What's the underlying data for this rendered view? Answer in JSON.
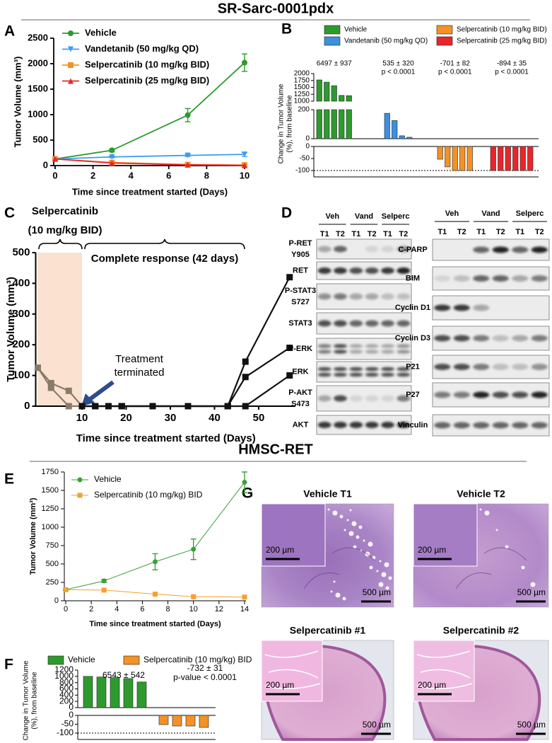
{
  "headings": {
    "top": "SR-Sarc-0001pdx",
    "bottom": "HMSC-RET"
  },
  "panel_labels": [
    "A",
    "B",
    "C",
    "D",
    "E",
    "F",
    "G"
  ],
  "chart_data": [
    {
      "type": "line",
      "x_label": "Time since treatment started (Days)",
      "y_label": "Tumor Volume (mm³)",
      "x": [
        0,
        3,
        7,
        10
      ],
      "xlim": [
        0,
        10
      ],
      "xticks": [
        0,
        2,
        4,
        6,
        8,
        10
      ],
      "ylim": [
        0,
        2500
      ],
      "yticks": [
        0,
        500,
        1000,
        1500,
        2000,
        2500
      ],
      "legend": "upper left",
      "series": [
        {
          "name": "Vehicle",
          "color": "#2e9a2e",
          "marker": "circle",
          "values": [
            130,
            300,
            990,
            2020
          ],
          "errors": [
            10,
            30,
            130,
            170
          ]
        },
        {
          "name": "Vandetanib (50 mg/kg QD)",
          "color": "#3d9cf0",
          "marker": "triangle-down",
          "values": [
            130,
            170,
            200,
            220
          ],
          "errors": [
            10,
            15,
            20,
            40
          ]
        },
        {
          "name": "Selpercatinib (10 mg/kg BID)",
          "color": "#f39226",
          "marker": "square",
          "values": [
            130,
            60,
            20,
            10
          ]
        },
        {
          "name": "Selpercatinib (25 mg/kg BID)",
          "color": "#e8262a",
          "marker": "triangle-up",
          "values": [
            130,
            50,
            15,
            5
          ]
        }
      ]
    },
    {
      "type": "waterfall",
      "y_label": [
        "Change in Tumor Volume",
        "(%), from baseline"
      ],
      "y_segments": [
        {
          "ylim": [
            1000,
            2000
          ],
          "yticks": [
            1000,
            1250,
            1500,
            1750,
            2000
          ]
        },
        {
          "ylim": [
            0,
            200
          ],
          "yticks": [
            0,
            200
          ]
        },
        {
          "ylim": [
            -100,
            0
          ],
          "yticks": [
            -100,
            -50,
            0
          ]
        }
      ],
      "reference_line": -100,
      "legend": "top",
      "series": [
        {
          "name": "Vehicle",
          "color": "#2e9a2e",
          "values": [
            1770,
            1690,
            1560,
            1210,
            1200
          ],
          "annotation": [
            "6497 ± 937"
          ]
        },
        {
          "name": "Vandetanib (50 mg/kg QD)",
          "color": "#3d8fe0",
          "values": [
            175,
            125,
            20,
            10
          ],
          "annotation": [
            "535 ± 320",
            "p < 0.0001"
          ]
        },
        {
          "name": "Selpercatinib (10 mg/kg BID)",
          "color": "#f39226",
          "values": [
            -53,
            -85,
            -100,
            -100,
            -100
          ],
          "annotation": [
            "-701 ± 82",
            "p < 0.0001"
          ]
        },
        {
          "name": "Selpercatinib (25 mg/kg BID)",
          "color": "#e8262a",
          "values": [
            -100,
            -100,
            -100,
            -100,
            -100,
            -100
          ],
          "annotation": [
            "-894 ± 35",
            "p < 0.0001"
          ]
        }
      ]
    },
    {
      "type": "line",
      "x_label": "Time since treatment started (Days)",
      "y_label": "Tumor Volume (mm³)",
      "xlim": [
        0,
        58
      ],
      "xticks": [
        10,
        20,
        30,
        40,
        50
      ],
      "ylim": [
        0,
        500
      ],
      "yticks": [
        0,
        100,
        200,
        300,
        400,
        500
      ],
      "shaded_x": [
        0,
        10
      ],
      "annotations": {
        "treatment": [
          "Selpercatinib",
          "(10 mg/kg BID)"
        ],
        "response": "Complete response (42 days)",
        "terminated": [
          "Treatment",
          "terminated"
        ]
      },
      "series": [
        {
          "color": "#8a7a6a",
          "marker": "square",
          "x": [
            0,
            3,
            7,
            10
          ],
          "values": [
            125,
            75,
            50,
            0
          ]
        },
        {
          "color": "#8a7a6a",
          "marker": "square",
          "x": [
            0,
            3,
            7,
            10
          ],
          "values": [
            125,
            60,
            0,
            0
          ]
        },
        {
          "color": "#111111",
          "marker": "square",
          "x": [
            10,
            13,
            16,
            19,
            26,
            34,
            43,
            47,
            57
          ],
          "values": [
            0,
            0,
            0,
            0,
            0,
            0,
            0,
            145,
            420
          ]
        },
        {
          "color": "#111111",
          "marker": "square",
          "x": [
            10,
            13,
            16,
            19,
            26,
            34,
            43,
            47,
            57
          ],
          "values": [
            0,
            0,
            0,
            0,
            0,
            0,
            0,
            95,
            190
          ]
        },
        {
          "color": "#111111",
          "marker": "square",
          "x": [
            10,
            13,
            16,
            19,
            26,
            34,
            43,
            47,
            57
          ],
          "values": [
            0,
            0,
            0,
            0,
            0,
            0,
            0,
            0,
            100
          ]
        }
      ]
    },
    {
      "type": "line",
      "x_label": "Time since treatment started (Days)",
      "y_label": "Tumor Volume (mm³)",
      "x": [
        0,
        3,
        7,
        10,
        14
      ],
      "xlim": [
        0,
        14
      ],
      "xticks": [
        0,
        2,
        4,
        6,
        8,
        10,
        12,
        14
      ],
      "ylim": [
        0,
        1750
      ],
      "yticks": [
        0,
        250,
        500,
        750,
        1000,
        1250,
        1500,
        1750
      ],
      "legend": "upper left",
      "series": [
        {
          "name": "Vehicle",
          "color": "#3aa03a",
          "marker": "circle",
          "values": [
            150,
            270,
            530,
            700,
            1610
          ],
          "errors": [
            10,
            20,
            110,
            140,
            140
          ]
        },
        {
          "name": "Selpercatinib (10 mg/kg) BID",
          "color": "#f5a030",
          "marker": "square",
          "values": [
            150,
            145,
            90,
            55,
            50
          ]
        }
      ]
    },
    {
      "type": "waterfall",
      "y_label": [
        "Change in Tumor Volume",
        "(%), from baseline"
      ],
      "y_segments": [
        {
          "ylim": [
            0,
            1200
          ],
          "yticks": [
            0,
            200,
            400,
            600,
            800,
            1000,
            1200
          ]
        },
        {
          "ylim": [
            -100,
            0
          ],
          "yticks": [
            -100,
            -50,
            0
          ]
        }
      ],
      "reference_line": -100,
      "legend": "top",
      "series": [
        {
          "name": "Vehicle",
          "color": "#2e9a2e",
          "values": [
            1000,
            980,
            960,
            930,
            820
          ],
          "annotation": [
            "6543 ± 542"
          ]
        },
        {
          "name": "Selpercatinib (10 mg/kg) BID",
          "color": "#f39226",
          "values": [
            -52,
            -60,
            -60,
            -68
          ],
          "annotation": [
            "-732 ± 31",
            "p-value < 0.0001"
          ]
        }
      ]
    }
  ],
  "blots": [
    {
      "groups": [
        "Veh",
        "Vand",
        "Selperc"
      ],
      "lanes": [
        "T1",
        "T2",
        "T1",
        "T2",
        "T1",
        "T2"
      ],
      "rows": [
        [
          "P-RET",
          "Y905"
        ],
        [
          "RET"
        ],
        [
          "P-STAT3",
          "S727"
        ],
        [
          "STAT3"
        ],
        [
          "P-ERK"
        ],
        [
          "ERK"
        ],
        [
          "P-AKT",
          "S473"
        ],
        [
          "AKT"
        ]
      ]
    },
    {
      "groups": [
        "Veh",
        "Vand",
        "Selperc"
      ],
      "lanes": [
        "T1",
        "T2",
        "T1",
        "T2",
        "T1",
        "T2"
      ],
      "rows": [
        [
          "C-PARP"
        ],
        [
          "BIM"
        ],
        [
          "Cyclin D1"
        ],
        [
          "Cyclin D3"
        ],
        [
          "P21"
        ],
        [
          "P27"
        ],
        [
          "Vinculin"
        ]
      ]
    }
  ],
  "histology": [
    {
      "title": "Vehicle T1",
      "inset_scale": "200 µm",
      "scale": "500 µm"
    },
    {
      "title": "Vehicle T2",
      "inset_scale": "200 µm",
      "scale": "500 µm"
    },
    {
      "title": "Selpercatinib #1",
      "inset_scale": "200 µm",
      "scale": "500 µm"
    },
    {
      "title": "Selpercatinib #2",
      "inset_scale": "200 µm",
      "scale": "500 µm"
    }
  ]
}
